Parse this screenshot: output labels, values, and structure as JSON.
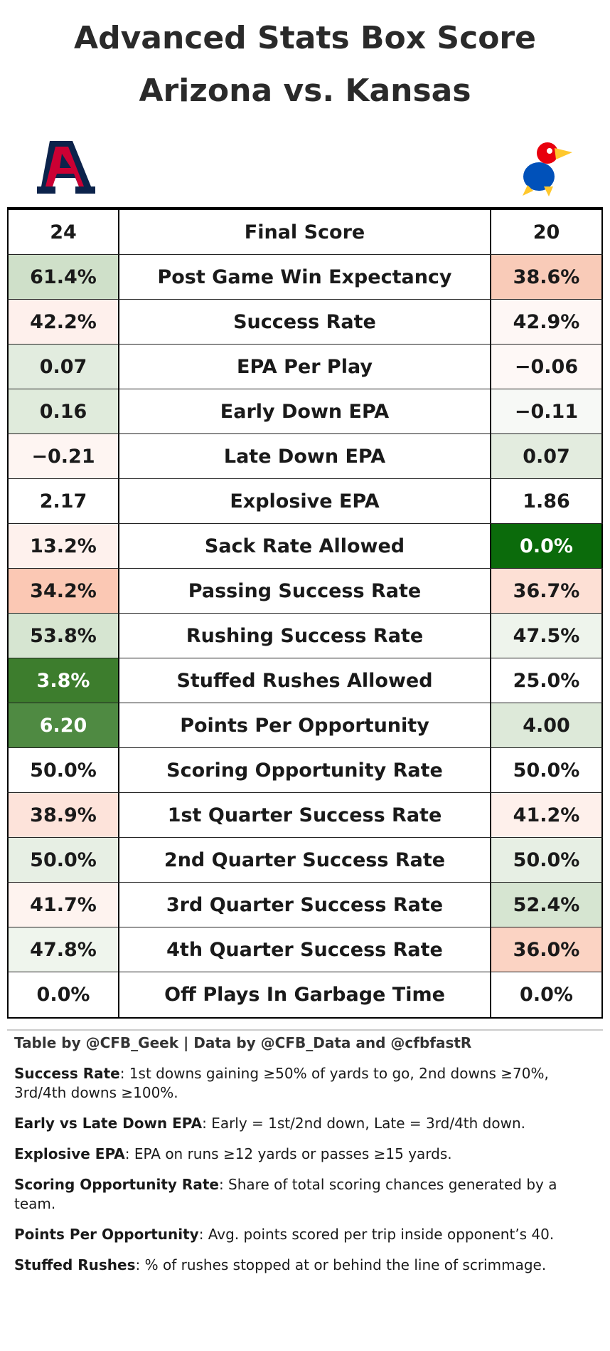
{
  "header": {
    "title": "Advanced Stats Box Score",
    "subtitle": "Arizona vs. Kansas"
  },
  "table": {
    "rows": [
      {
        "left": "24",
        "label": "Final Score",
        "right": "20",
        "left_color": "#ffffff",
        "right_color": "#ffffff"
      },
      {
        "left": "61.4%",
        "label": "Post Game Win Expectancy",
        "right": "38.6%",
        "left_color": "#cfe0c9",
        "right_color": "#f9cbb8"
      },
      {
        "left": "42.2%",
        "label": "Success Rate",
        "right": "42.9%",
        "left_color": "#fef0ec",
        "right_color": "#fef7f5"
      },
      {
        "left": "0.07",
        "label": "EPA Per Play",
        "right": "−0.06",
        "left_color": "#e2ecdf",
        "right_color": "#fef8f6"
      },
      {
        "left": "0.16",
        "label": "Early Down EPA",
        "right": "−0.11",
        "left_color": "#e0ebdc",
        "right_color": "#f7f9f6"
      },
      {
        "left": "−0.21",
        "label": "Late Down EPA",
        "right": "0.07",
        "left_color": "#fef5f2",
        "right_color": "#e3ecdf"
      },
      {
        "left": "2.17",
        "label": "Explosive EPA",
        "right": "1.86",
        "left_color": "#ffffff",
        "right_color": "#ffffff"
      },
      {
        "left": "13.2%",
        "label": "Sack Rate Allowed",
        "right": "0.0%",
        "left_color": "#fef1ed",
        "right_color": "#0b6b0b"
      },
      {
        "left": "34.2%",
        "label": "Passing Success Rate",
        "right": "36.7%",
        "left_color": "#fbc8b4",
        "right_color": "#fde0d5"
      },
      {
        "left": "53.8%",
        "label": "Rushing Success Rate",
        "right": "47.5%",
        "left_color": "#d6e5d1",
        "right_color": "#eef4ec"
      },
      {
        "left": "3.8%",
        "label": "Stuffed Rushes Allowed",
        "right": "25.0%",
        "left_color": "#3d7d2d",
        "right_color": "#ffffff"
      },
      {
        "left": "6.20",
        "label": "Points Per Opportunity",
        "right": "4.00",
        "left_color": "#4f8a42",
        "right_color": "#dde9d9"
      },
      {
        "left": "50.0%",
        "label": "Scoring Opportunity Rate",
        "right": "50.0%",
        "left_color": "#ffffff",
        "right_color": "#ffffff"
      },
      {
        "left": "38.9%",
        "label": "1st Quarter Success Rate",
        "right": "41.2%",
        "left_color": "#fde3da",
        "right_color": "#fef0eb"
      },
      {
        "left": "50.0%",
        "label": "2nd Quarter Success Rate",
        "right": "50.0%",
        "left_color": "#e7efe4",
        "right_color": "#e7efe4"
      },
      {
        "left": "41.7%",
        "label": "3rd Quarter Success Rate",
        "right": "52.4%",
        "left_color": "#fef3ef",
        "right_color": "#d6e5d1"
      },
      {
        "left": "47.8%",
        "label": "4th Quarter Success Rate",
        "right": "36.0%",
        "left_color": "#eff5ed",
        "right_color": "#fbd3c3"
      },
      {
        "left": "0.0%",
        "label": "Off Plays In Garbage Time",
        "right": "0.0%",
        "left_color": "#ffffff",
        "right_color": "#ffffff"
      }
    ]
  },
  "footer": {
    "credit": "Table by @CFB_Geek | Data by @CFB_Data and @cfbfastR",
    "notes": [
      {
        "term": "Success Rate",
        "text": ": 1st downs gaining ≥50% of yards to go, 2nd downs ≥70%, 3rd/4th downs ≥100%."
      },
      {
        "term": "Early vs Late Down EPA",
        "text": ": Early = 1st/2nd down, Late = 3rd/4th down."
      },
      {
        "term": "Explosive EPA",
        "text": ": EPA on runs ≥12 yards or passes ≥15 yards."
      },
      {
        "term": "Scoring Opportunity Rate",
        "text": ": Share of total scoring chances generated by a team."
      },
      {
        "term": "Points Per Opportunity",
        "text": ": Avg. points scored per trip inside opponent’s 40."
      },
      {
        "term": "Stuffed Rushes",
        "text": ": % of rushes stopped at or behind the line of scrimmage."
      }
    ]
  }
}
